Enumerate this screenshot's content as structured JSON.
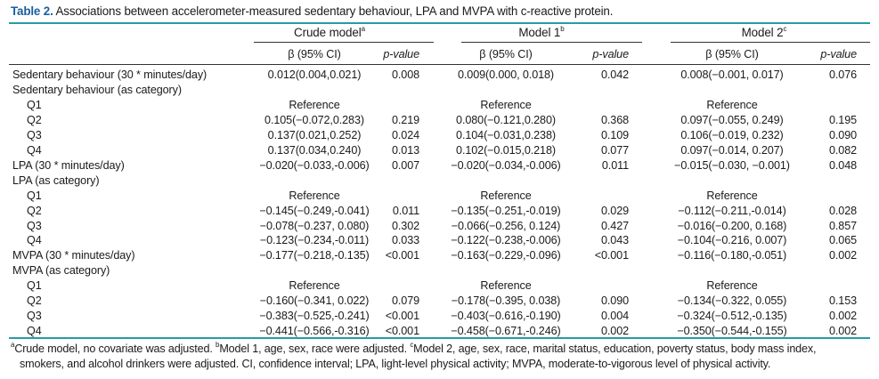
{
  "caption": {
    "table_no": "Table 2.",
    "text": " Associations between accelerometer-measured sedentary behaviour, LPA and MVPA with c-reactive protein."
  },
  "headers": {
    "groups": [
      {
        "label": "Crude model",
        "sup": "a"
      },
      {
        "label": "Model 1",
        "sup": "b"
      },
      {
        "label": "Model 2",
        "sup": "c"
      }
    ],
    "beta": "β (95% CI)",
    "p": "p-value"
  },
  "rows": [
    {
      "label": "Sedentary behaviour (30 * minutes/day)",
      "indent": false,
      "cells": [
        "0.012(0.004,0.021)",
        "0.008",
        "0.009(0.000, 0.018)",
        "0.042",
        "0.008(−0.001, 0.017)",
        "0.076"
      ]
    },
    {
      "label": "Sedentary behaviour (as category)",
      "indent": false,
      "cells": [
        "",
        "",
        "",
        "",
        "",
        ""
      ]
    },
    {
      "label": "Q1",
      "indent": true,
      "cells": [
        "Reference",
        "",
        "Reference",
        "",
        "Reference",
        ""
      ]
    },
    {
      "label": "Q2",
      "indent": true,
      "cells": [
        "0.105(−0.072,0.283)",
        "0.219",
        "0.080(−0.121,0.280)",
        "0.368",
        "0.097(−0.055, 0.249)",
        "0.195"
      ]
    },
    {
      "label": "Q3",
      "indent": true,
      "cells": [
        "0.137(0.021,0.252)",
        "0.024",
        "0.104(−0.031,0.238)",
        "0.109",
        "0.106(−0.019, 0.232)",
        "0.090"
      ]
    },
    {
      "label": "Q4",
      "indent": true,
      "cells": [
        "0.137(0.034,0.240)",
        "0.013",
        "0.102(−0.015,0.218)",
        "0.077",
        "0.097(−0.014, 0.207)",
        "0.082"
      ]
    },
    {
      "label": "LPA (30 * minutes/day)",
      "indent": false,
      "cells": [
        "−0.020(−0.033,-0.006)",
        "0.007",
        "−0.020(−0.034,-0.006)",
        "0.011",
        "−0.015(−0.030, −0.001)",
        "0.048"
      ]
    },
    {
      "label": "LPA (as category)",
      "indent": false,
      "cells": [
        "",
        "",
        "",
        "",
        "",
        ""
      ]
    },
    {
      "label": "Q1",
      "indent": true,
      "cells": [
        "Reference",
        "",
        "Reference",
        "",
        "Reference",
        ""
      ]
    },
    {
      "label": "Q2",
      "indent": true,
      "cells": [
        "−0.145(−0.249,-0.041)",
        "0.011",
        "−0.135(−0.251,-0.019)",
        "0.029",
        "−0.112(−0.211,-0.014)",
        "0.028"
      ]
    },
    {
      "label": "Q3",
      "indent": true,
      "cells": [
        "−0.078(−0.237, 0.080)",
        "0.302",
        "−0.066(−0.256, 0.124)",
        "0.427",
        "−0.016(−0.200, 0.168)",
        "0.857"
      ]
    },
    {
      "label": "Q4",
      "indent": true,
      "cells": [
        "−0.123(−0.234,-0.011)",
        "0.033",
        "−0.122(−0.238,-0.006)",
        "0.043",
        "−0.104(−0.216, 0.007)",
        "0.065"
      ]
    },
    {
      "label": "MVPA (30 * minutes/day)",
      "indent": false,
      "cells": [
        "−0.177(−0.218,-0.135)",
        "<0.001",
        "−0.163(−0.229,-0.096)",
        "<0.001",
        "−0.116(−0.180,-0.051)",
        "0.002"
      ]
    },
    {
      "label": "MVPA (as category)",
      "indent": false,
      "cells": [
        "",
        "",
        "",
        "",
        "",
        ""
      ]
    },
    {
      "label": "Q1",
      "indent": true,
      "cells": [
        "Reference",
        "",
        "Reference",
        "",
        "Reference",
        ""
      ]
    },
    {
      "label": "Q2",
      "indent": true,
      "cells": [
        "−0.160(−0.341, 0.022)",
        "0.079",
        "−0.178(−0.395, 0.038)",
        "0.090",
        "−0.134(−0.322, 0.055)",
        "0.153"
      ]
    },
    {
      "label": "Q3",
      "indent": true,
      "cells": [
        "−0.383(−0.525,-0.241)",
        "<0.001",
        "−0.403(−0.616,-0.190)",
        "0.004",
        "−0.324(−0.512,-0.135)",
        "0.002"
      ]
    },
    {
      "label": "Q4",
      "indent": true,
      "cells": [
        "−0.441(−0.566,-0.316)",
        "<0.001",
        "−0.458(−0.671,-0.246)",
        "0.002",
        "−0.350(−0.544,-0.155)",
        "0.002"
      ]
    }
  ],
  "footnotes": {
    "a_mark": "a",
    "a_text": "Crude model, no covariate was adjusted. ",
    "b_mark": "b",
    "b_text": "Model 1, age, sex, race were adjusted. ",
    "c_mark": "c",
    "c_text": "Model 2, age, sex, race, marital status, education, poverty status, body mass index,",
    "line2": "smokers, and alcohol drinkers were adjusted. CI, confidence interval; LPA, light-level physical activity; MVPA, moderate-to-vigorous level of physical activity."
  }
}
